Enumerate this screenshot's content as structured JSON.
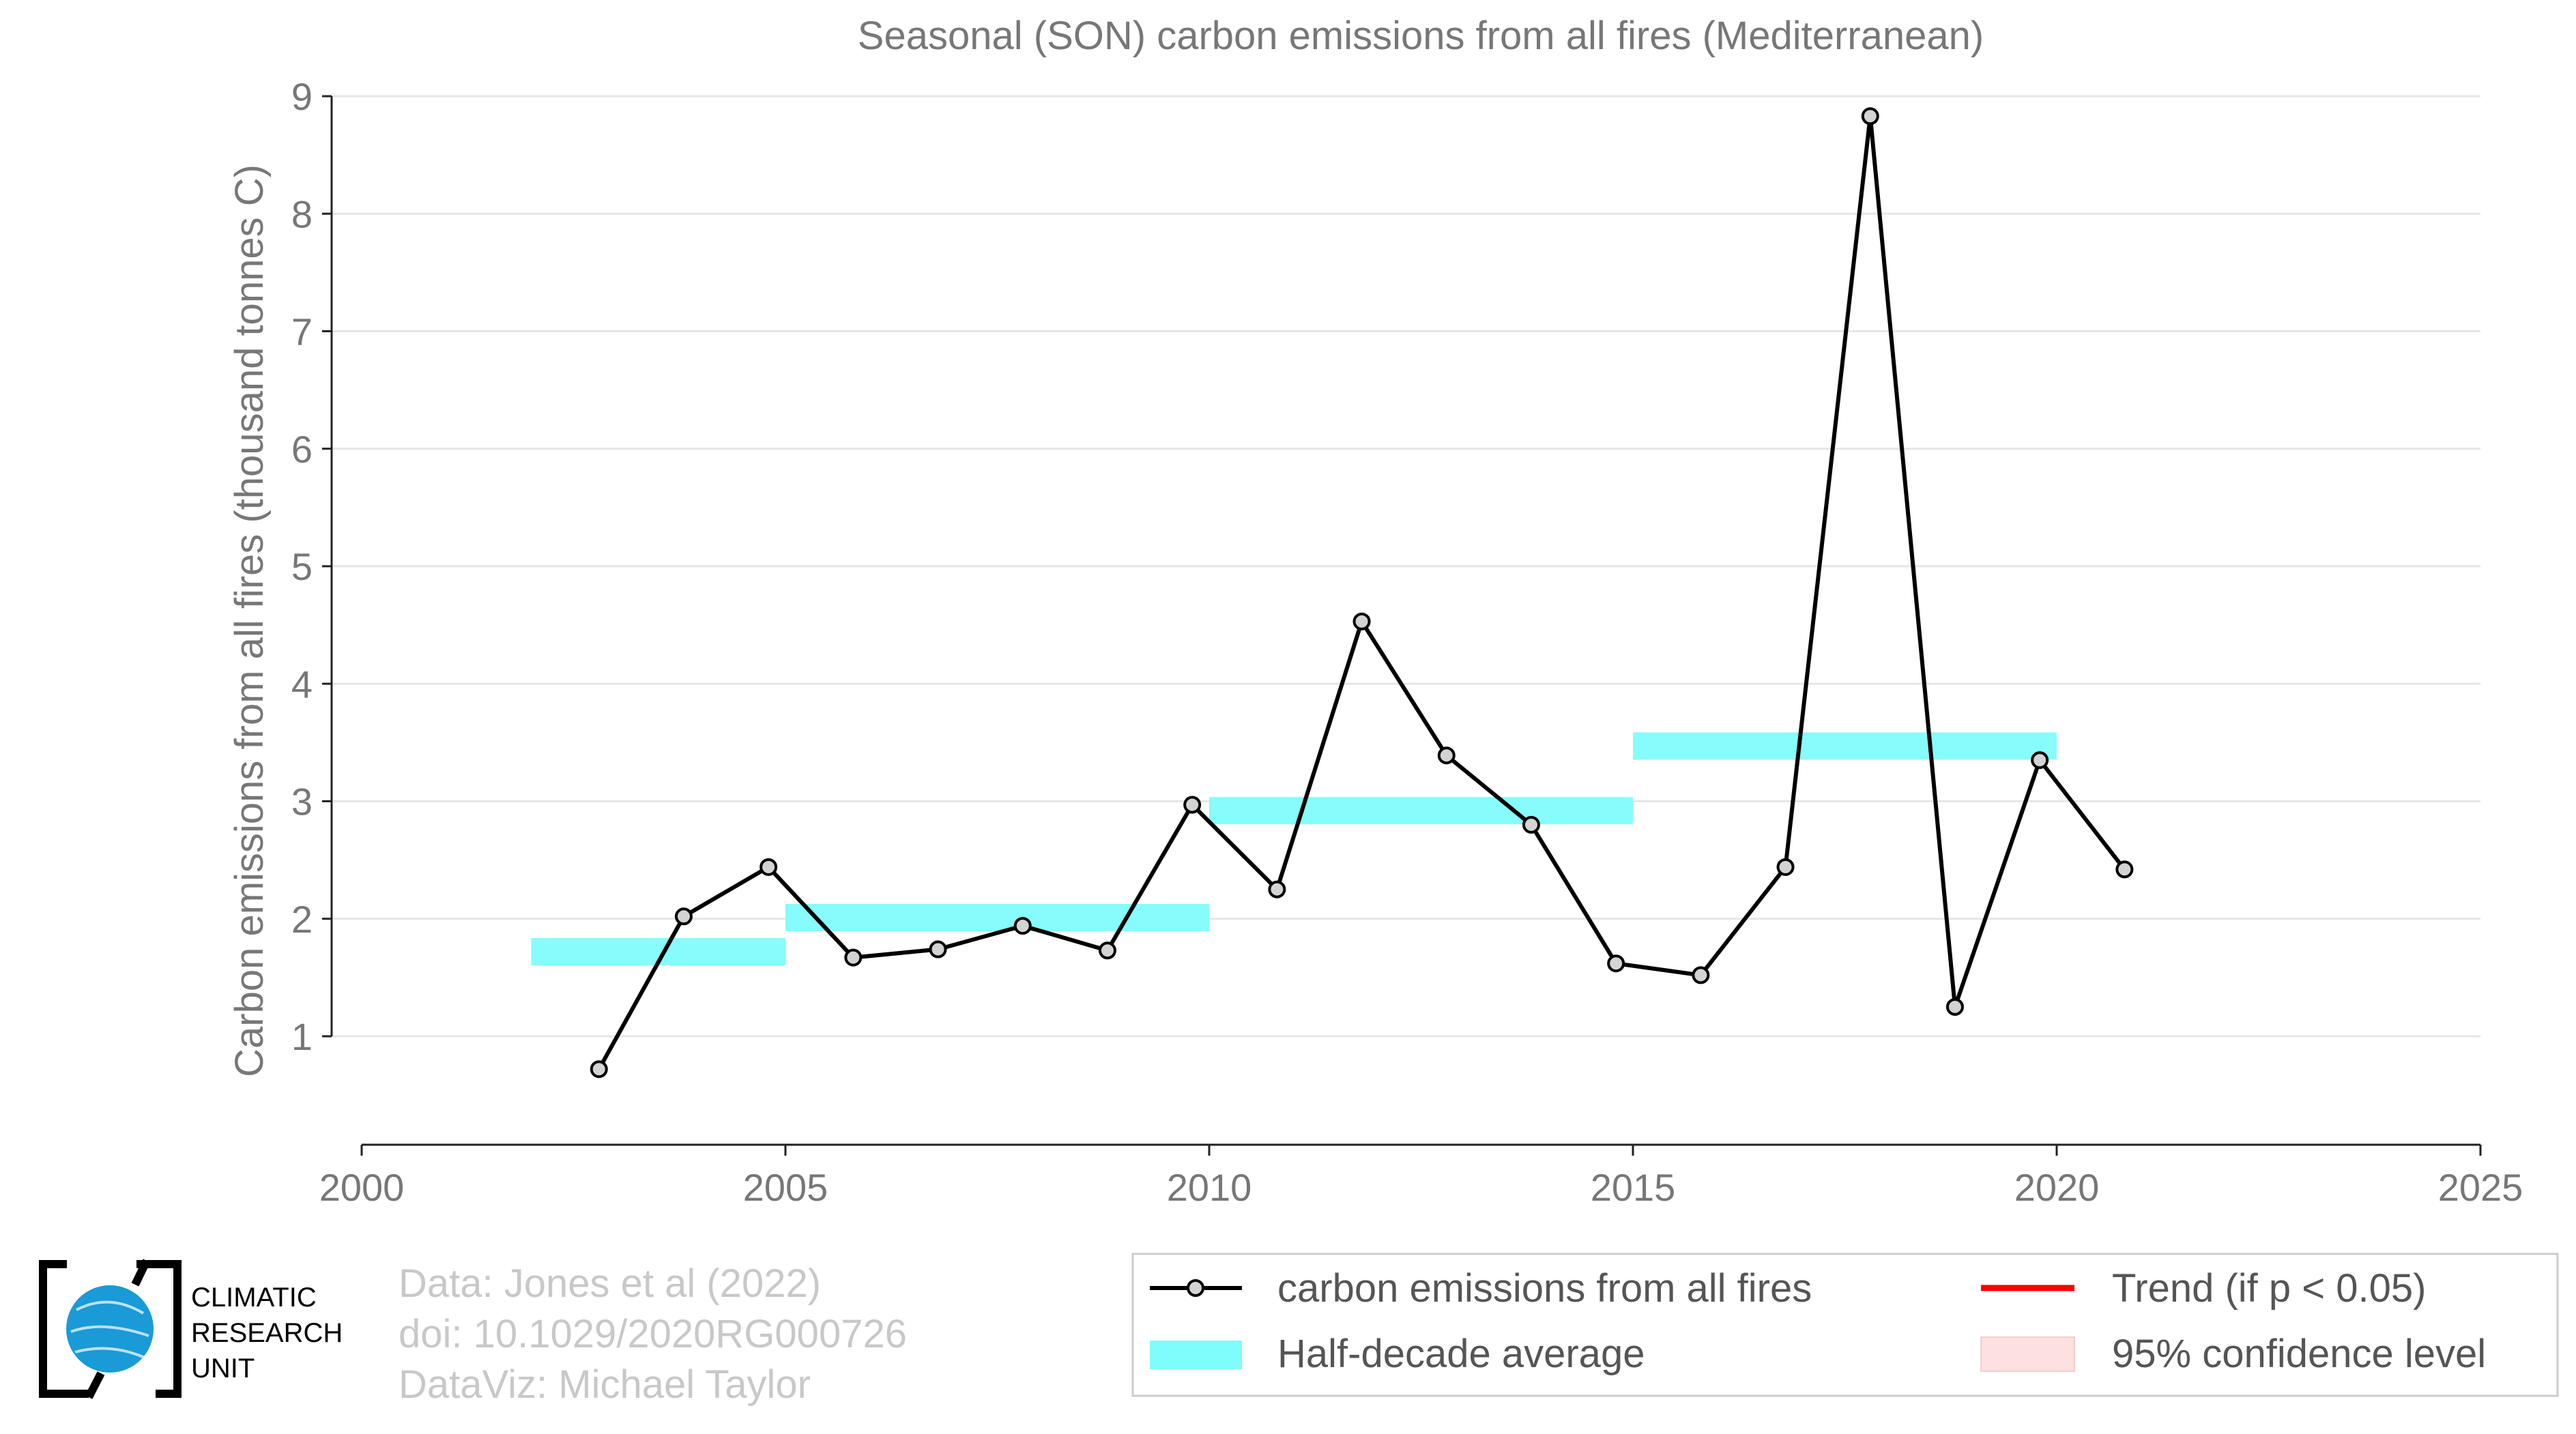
{
  "chart_data": {
    "type": "line",
    "title": "Seasonal (SON) carbon emissions from all fires (Mediterranean)",
    "ylabel": "Carbon emissions from all fires (thousand tonnes C)",
    "xlabel": "",
    "xlim": [
      2000,
      2025
    ],
    "ylim": [
      0.05,
      9
    ],
    "x_ticks": [
      "2000",
      "2005",
      "2010",
      "2015",
      "2020",
      "2025"
    ],
    "y_ticks": [
      "1",
      "2",
      "3",
      "4",
      "5",
      "6",
      "7",
      "8",
      "9"
    ],
    "grid": true,
    "legend_position": "bottom-right",
    "series": [
      {
        "name": "carbon emissions from all fires",
        "color": "#000000",
        "marker_fill": "#d3d3d3",
        "x": [
          2002.8,
          2003.8,
          2004.8,
          2005.8,
          2006.8,
          2007.8,
          2008.8,
          2009.8,
          2010.8,
          2011.8,
          2012.8,
          2013.8,
          2014.8,
          2015.8,
          2016.8,
          2017.8,
          2018.8,
          2019.8,
          2020.8
        ],
        "values": [
          0.72,
          2.02,
          2.44,
          1.67,
          1.74,
          1.94,
          1.73,
          2.97,
          2.25,
          4.53,
          3.39,
          2.8,
          1.62,
          1.52,
          2.44,
          8.83,
          1.25,
          3.35,
          2.42
        ]
      }
    ],
    "half_decade_average": {
      "name": "Half-decade average",
      "color": "#7ffcfc",
      "segments": [
        {
          "x_start": 2002,
          "x_end": 2005,
          "value": 1.72
        },
        {
          "x_start": 2005,
          "x_end": 2010,
          "value": 2.01
        },
        {
          "x_start": 2010,
          "x_end": 2015,
          "value": 2.92
        },
        {
          "x_start": 2015,
          "x_end": 2020,
          "value": 3.47
        }
      ]
    },
    "legend": [
      {
        "label": "carbon emissions from all fires",
        "kind": "line-marker",
        "color": "#000000"
      },
      {
        "label": "Trend (if p < 0.05)",
        "kind": "line",
        "color": "#ff0000"
      },
      {
        "label": "Half-decade average",
        "kind": "band",
        "color": "#7ffcfc"
      },
      {
        "label": "95% confidence level",
        "kind": "patch",
        "color": "#fde0e0"
      }
    ]
  },
  "credits": {
    "line1": "Data: Jones et al (2022)",
    "line2": "doi: 10.1029/2020RG000726",
    "line3": "DataViz: Michael Taylor"
  },
  "logo": {
    "line1": "CLIMATIC",
    "line2": "RESEARCH",
    "line3": "UNIT",
    "globe_color": "#1a9ad6"
  }
}
